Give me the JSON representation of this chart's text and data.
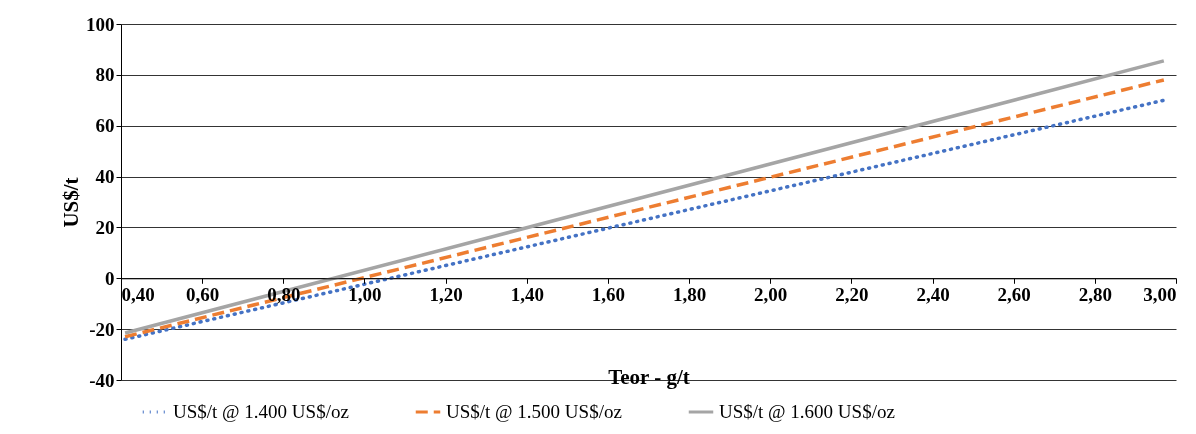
{
  "chart_data": {
    "type": "line",
    "xlabel": "Teor - g/t",
    "ylabel": "US$/t",
    "xlim": [
      0.4,
      3.0
    ],
    "ylim": [
      -40,
      100
    ],
    "xticks": [
      {
        "value": 0.4,
        "label": "0,40"
      },
      {
        "value": 0.6,
        "label": "0,60"
      },
      {
        "value": 0.8,
        "label": "0,80"
      },
      {
        "value": 1.0,
        "label": "1,00"
      },
      {
        "value": 1.2,
        "label": "1,20"
      },
      {
        "value": 1.4,
        "label": "1,40"
      },
      {
        "value": 1.6,
        "label": "1,60"
      },
      {
        "value": 1.8,
        "label": "1,80"
      },
      {
        "value": 2.0,
        "label": "2,00"
      },
      {
        "value": 2.2,
        "label": "2,20"
      },
      {
        "value": 2.4,
        "label": "2,40"
      },
      {
        "value": 2.6,
        "label": "2,60"
      },
      {
        "value": 2.8,
        "label": "2,80"
      },
      {
        "value": 3.0,
        "label": "3,00"
      }
    ],
    "yticks": [
      -40,
      -20,
      0,
      20,
      40,
      60,
      80,
      100
    ],
    "x": [
      0.41,
      2.97
    ],
    "series": [
      {
        "name": "US$/t @ 1.400 US$/oz",
        "color": "#4472c4",
        "line_style": "dotted",
        "values": [
          -24,
          70
        ]
      },
      {
        "name": "US$/t @ 1.500 US$/oz",
        "color": "#ed7d31",
        "line_style": "dashed",
        "values": [
          -23,
          78
        ]
      },
      {
        "name": "US$/t @ 1.600 US$/oz",
        "color": "#a5a5a5",
        "line_style": "solid",
        "values": [
          -21.5,
          85.5
        ]
      }
    ],
    "grid": "y",
    "legend": "bottom"
  }
}
